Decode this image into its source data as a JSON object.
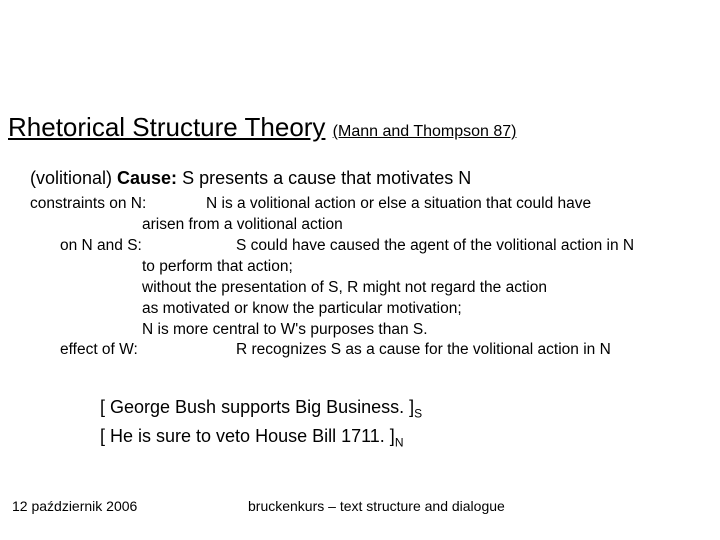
{
  "title": {
    "main": "Rhetorical Structure Theory",
    "citation": "(Mann and Thompson 87)"
  },
  "definition": {
    "name_pre": "(volitional) ",
    "name_bold": "Cause:",
    "body": "  S presents a cause that motivates N"
  },
  "constraints": {
    "n_label": "constraints on N:",
    "n_line1": "N is a volitional action or else a situation that could have",
    "n_line2": "arisen from a volitional action",
    "ns_label": "on N and S:",
    "ns_line1": "S could have caused the agent of the volitional action in N",
    "ns_line2": "to perform that action;",
    "ns_line3": "without the presentation of S, R might not regard the action",
    "ns_line4": "as motivated or know the particular motivation;",
    "ns_line5": "N is more central to W's purposes than S.",
    "eff_label": "effect of W:",
    "eff_line1": "R recognizes S as a cause for the volitional action in N"
  },
  "examples": {
    "line1_content": "[ George Bush supports Big Business. ]",
    "line1_sub": "S",
    "line2_content": "[ He is sure to veto House Bill 1711. ]",
    "line2_sub": "N"
  },
  "footer": {
    "left": "12 październik 2006",
    "center": "bruckenkurs – text structure and dialogue"
  },
  "style": {
    "bg": "#ffffff",
    "fg": "#000000",
    "title_fontsize": 26,
    "body_fontsize": 18,
    "constraint_fontsize": 15.5,
    "footer_fontsize": 14
  }
}
